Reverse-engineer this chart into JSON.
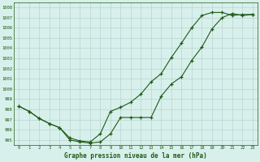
{
  "line1_x": [
    0,
    1,
    2,
    3,
    4,
    5,
    6,
    7,
    8,
    9,
    10,
    11,
    12,
    13,
    14,
    15,
    16,
    17,
    18,
    19,
    20,
    21,
    22,
    23
  ],
  "line1_y": [
    998.3,
    997.8,
    997.1,
    996.6,
    996.2,
    995.0,
    994.8,
    994.7,
    994.8,
    995.6,
    997.2,
    997.2,
    997.2,
    997.2,
    999.3,
    1000.5,
    1001.2,
    1002.8,
    1004.1,
    1005.9,
    1007.0,
    1007.4,
    1007.2,
    1007.3
  ],
  "line2_x": [
    0,
    1,
    2,
    3,
    4,
    5,
    6,
    7,
    8,
    9,
    10,
    11,
    12,
    13,
    14,
    15,
    16,
    17,
    18,
    19,
    20,
    21,
    22,
    23
  ],
  "line2_y": [
    998.3,
    997.8,
    997.1,
    996.6,
    996.2,
    995.2,
    994.9,
    994.8,
    995.6,
    997.8,
    998.2,
    998.7,
    999.5,
    1000.7,
    1001.5,
    1003.1,
    1004.5,
    1006.0,
    1007.2,
    1007.5,
    1007.5,
    1007.2,
    1007.3,
    1007.3
  ],
  "line_color": "#1e5a14",
  "bg_color": "#d8f0ec",
  "grid_color": "#b8d4d0",
  "xlabel": "Graphe pression niveau de la mer (hPa)",
  "xlim": [
    -0.5,
    23.5
  ],
  "ylim": [
    994.5,
    1008.5
  ],
  "yticks": [
    995,
    996,
    997,
    998,
    999,
    1000,
    1001,
    1002,
    1003,
    1004,
    1005,
    1006,
    1007,
    1008
  ],
  "xticks": [
    0,
    1,
    2,
    3,
    4,
    5,
    6,
    7,
    8,
    9,
    10,
    11,
    12,
    13,
    14,
    15,
    16,
    17,
    18,
    19,
    20,
    21,
    22,
    23
  ],
  "marker": "+"
}
